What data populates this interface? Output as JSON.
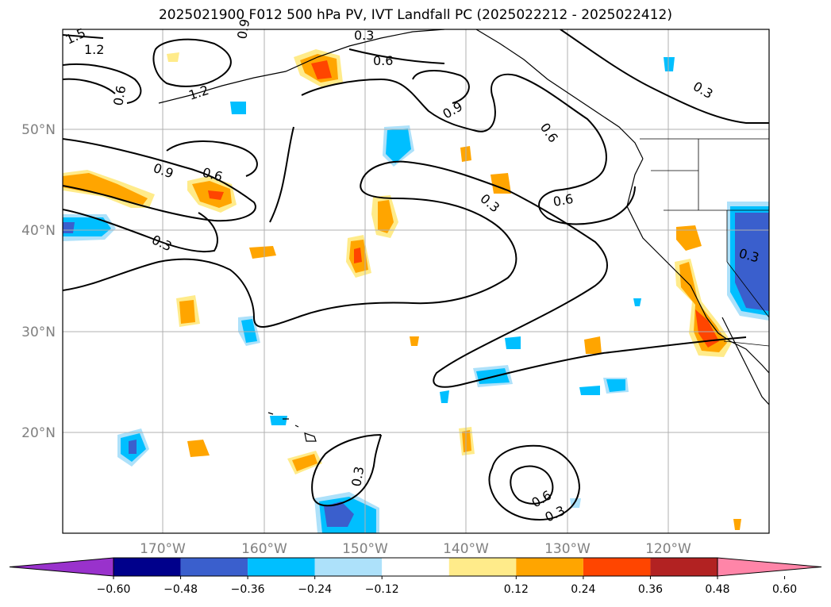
{
  "title": "2025021900 F012 500 hPa PV, IVT Landfall PC (2025022212 - 2025022412)",
  "lat_labels": [
    "50°N",
    "40°N",
    "30°N",
    "20°N"
  ],
  "lon_labels": [
    "170°W",
    "160°W",
    "150°W",
    "140°W",
    "130°W",
    "120°W"
  ],
  "colorbar": {
    "tick_labels": [
      "−0.60",
      "−0.48",
      "−0.36",
      "−0.24",
      "−0.12",
      "0.12",
      "0.24",
      "0.36",
      "0.48",
      "0.60"
    ],
    "colors": [
      "#9932CC",
      "#00008B",
      "#3A5FCD",
      "#00BFFF",
      "#ADE1FA",
      "#FFFFFF",
      "#FFEB8A",
      "#FFA500",
      "#FF4500",
      "#B22222",
      "#FF85A8"
    ]
  },
  "contour_labels": [
    "1.5",
    "1.2",
    "0.9",
    "0.3",
    "0.6",
    "1.2",
    "0.6",
    "0.9",
    "0.6",
    "0.3",
    "0.3",
    "0.9",
    "0.6",
    "0.3",
    "0.6",
    "0.3",
    "0.3",
    "0.6",
    "0.3"
  ]
}
